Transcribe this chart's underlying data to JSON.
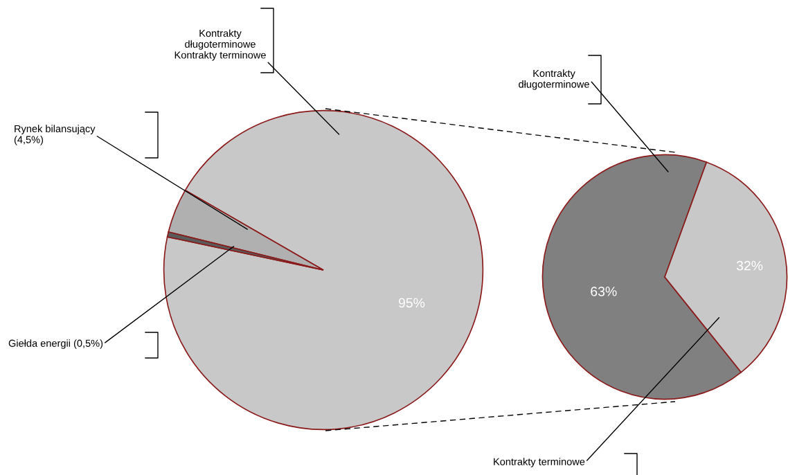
{
  "chart_data": [
    {
      "type": "pie",
      "categories": [
        "Kontrakty\ndługoterminowe\nKontrakty terminowe",
        "Rynek bilansujący\n(4,5%)",
        "Giełda energii (0,5%)"
      ],
      "values": [
        95,
        4.5,
        0.5
      ],
      "colors": [
        "#c8c8c8",
        "#b0b0b0",
        "#5a5a5a"
      ],
      "value_labels": [
        "95%",
        null,
        null
      ]
    },
    {
      "type": "pie",
      "categories": [
        "Kontrakty\ndługoterminowe",
        "Kontrakty terminowe"
      ],
      "values": [
        63,
        32
      ],
      "colors": [
        "#808080",
        "#c8c8c8"
      ],
      "value_labels": [
        "63%",
        "32%"
      ]
    }
  ]
}
